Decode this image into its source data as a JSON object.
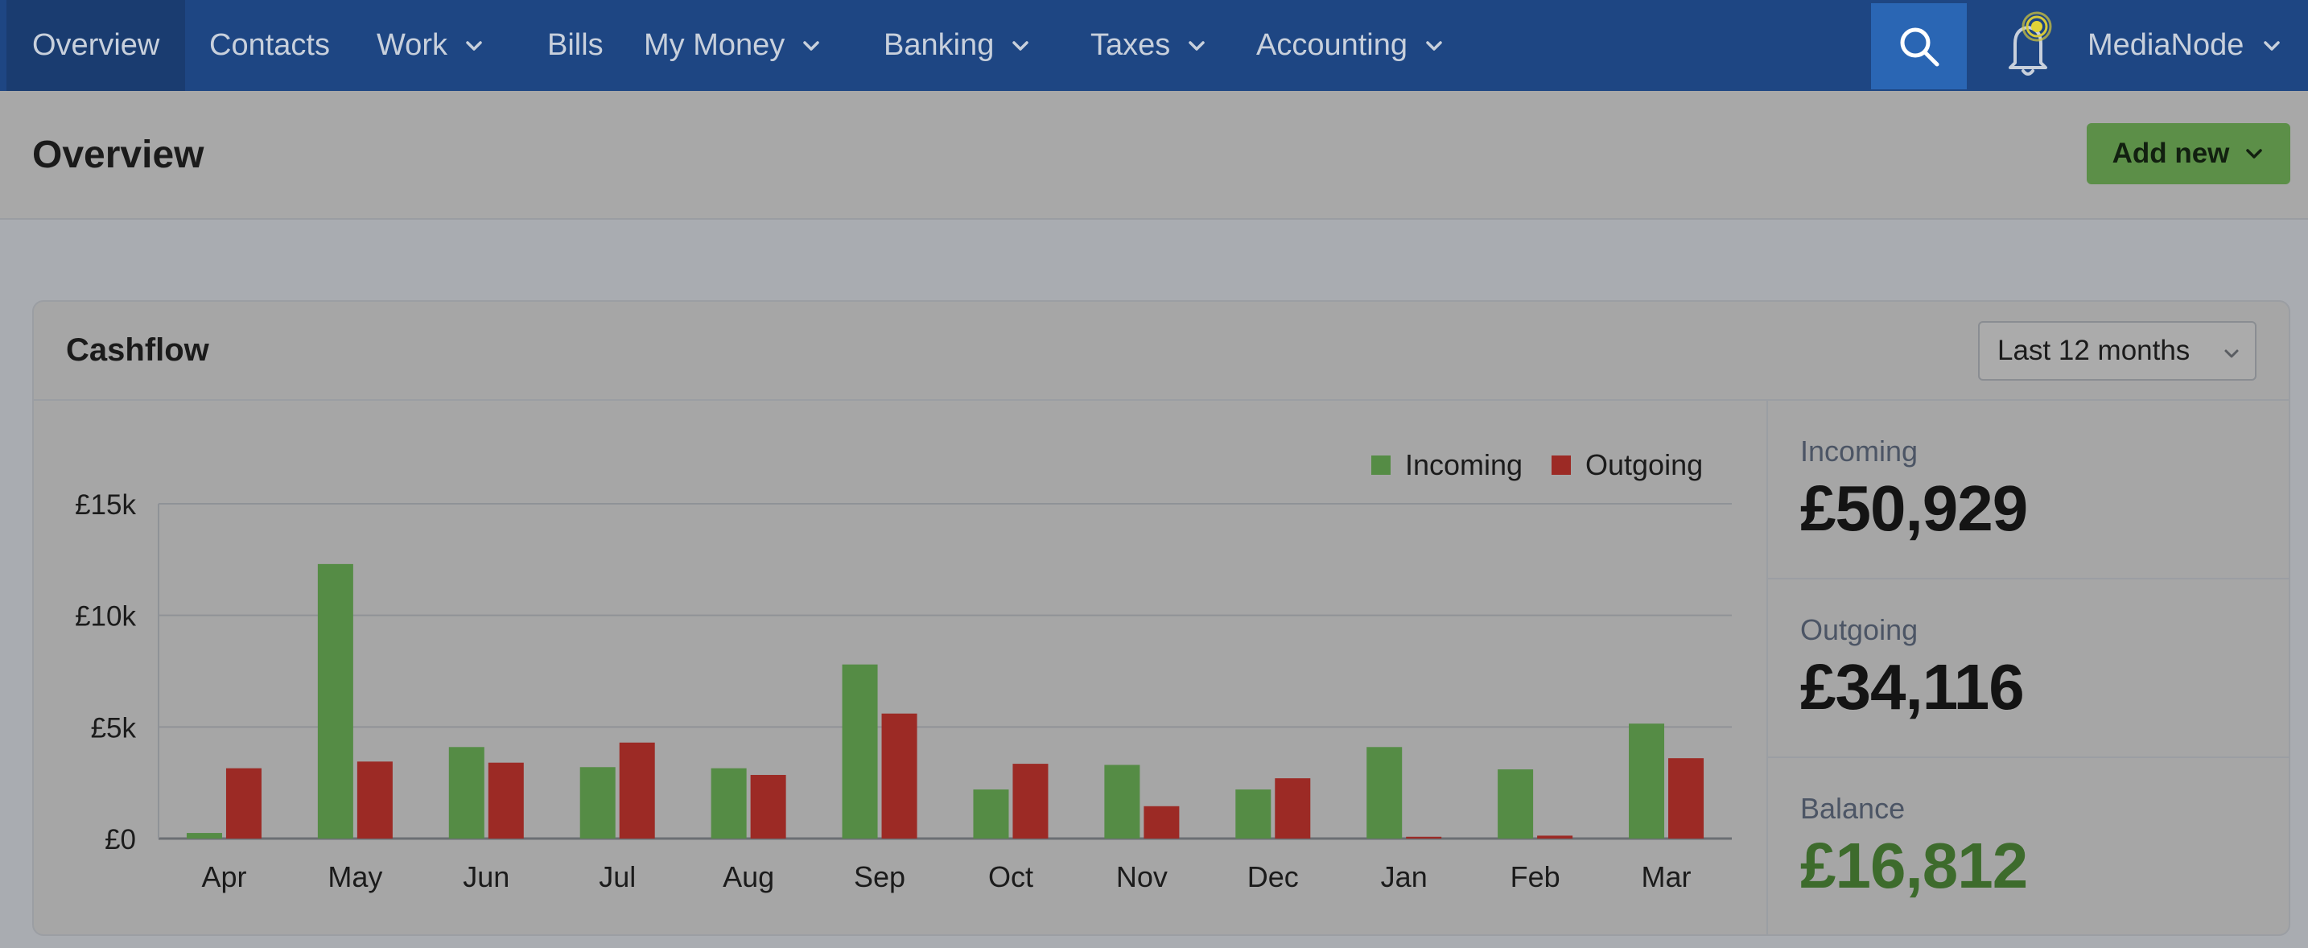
{
  "nav": {
    "items": [
      {
        "label": "Overview",
        "dropdown": false,
        "active": true
      },
      {
        "label": "Contacts",
        "dropdown": false,
        "active": false
      },
      {
        "label": "Work",
        "dropdown": true,
        "active": false
      },
      {
        "label": "Bills",
        "dropdown": false,
        "active": false
      },
      {
        "label": "My Money",
        "dropdown": true,
        "active": false
      },
      {
        "label": "Banking",
        "dropdown": true,
        "active": false
      },
      {
        "label": "Taxes",
        "dropdown": true,
        "active": false
      },
      {
        "label": "Accounting",
        "dropdown": true,
        "active": false
      }
    ],
    "search_icon": "search-icon",
    "notification_icon": "bell-icon",
    "user_label": "MediaNode"
  },
  "page": {
    "title": "Overview",
    "add_new_label": "Add new"
  },
  "cashflow": {
    "title": "Cashflow",
    "range_selected": "Last 12 months",
    "stats": [
      {
        "label": "Incoming",
        "value": "£50,929"
      },
      {
        "label": "Outgoing",
        "value": "£34,116"
      },
      {
        "label": "Balance",
        "value": "£16,812"
      }
    ]
  },
  "colors": {
    "nav_bg": "#1e4683",
    "incoming": "#558c45",
    "outgoing": "#9c2a25",
    "balance": "#3d6b2c",
    "add_button": "#5c8f48"
  },
  "chart_data": {
    "type": "bar",
    "categories": [
      "Apr",
      "May",
      "Jun",
      "Jul",
      "Aug",
      "Sep",
      "Oct",
      "Nov",
      "Dec",
      "Jan",
      "Feb",
      "Mar"
    ],
    "series": [
      {
        "name": "Incoming",
        "values": [
          250,
          12300,
          4100,
          3200,
          3150,
          7800,
          2200,
          3300,
          2200,
          4100,
          3100,
          5150
        ]
      },
      {
        "name": "Outgoing",
        "values": [
          3150,
          3450,
          3400,
          4300,
          2850,
          5600,
          3350,
          1450,
          2700,
          80,
          130,
          3600
        ]
      }
    ],
    "y_ticks": [
      "£0",
      "£5k",
      "£10k",
      "£15k"
    ],
    "ylim": [
      0,
      15000
    ],
    "legend": "top-right",
    "grid": true
  }
}
